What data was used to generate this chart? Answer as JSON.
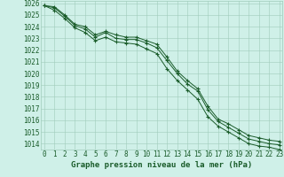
{
  "title": "Graphe pression niveau de la mer (hPa)",
  "x": [
    0,
    1,
    2,
    3,
    4,
    5,
    6,
    7,
    8,
    9,
    10,
    11,
    12,
    13,
    14,
    15,
    16,
    17,
    18,
    19,
    20,
    21,
    22,
    23
  ],
  "line_max": [
    1025.8,
    1025.7,
    1025.0,
    1024.2,
    1024.0,
    1023.3,
    1023.6,
    1023.3,
    1023.1,
    1023.1,
    1022.8,
    1022.5,
    1021.4,
    1020.2,
    1019.4,
    1018.7,
    1017.2,
    1016.1,
    1015.7,
    1015.2,
    1014.7,
    1014.5,
    1014.3,
    1014.2
  ],
  "line_mean": [
    1025.8,
    1025.6,
    1024.9,
    1024.1,
    1023.8,
    1023.1,
    1023.5,
    1023.0,
    1022.9,
    1022.9,
    1022.6,
    1022.2,
    1021.1,
    1020.0,
    1019.1,
    1018.5,
    1016.9,
    1015.9,
    1015.4,
    1014.9,
    1014.4,
    1014.2,
    1014.0,
    1013.9
  ],
  "line_min": [
    1025.8,
    1025.4,
    1024.7,
    1023.9,
    1023.5,
    1022.8,
    1023.1,
    1022.7,
    1022.6,
    1022.5,
    1022.1,
    1021.7,
    1020.4,
    1019.4,
    1018.6,
    1017.8,
    1016.3,
    1015.5,
    1015.0,
    1014.5,
    1014.0,
    1013.8,
    1013.7,
    1013.5
  ],
  "ylim": [
    1013.5,
    1026.2
  ],
  "xlim": [
    -0.3,
    23.3
  ],
  "bg_color": "#cff0e8",
  "grid_color": "#a0ccbb",
  "line_color": "#1a5c2a",
  "marker_color": "#1a5c2a",
  "tick_color": "#1a5c2a",
  "title_fontsize": 6.5,
  "tick_fontsize": 5.5
}
